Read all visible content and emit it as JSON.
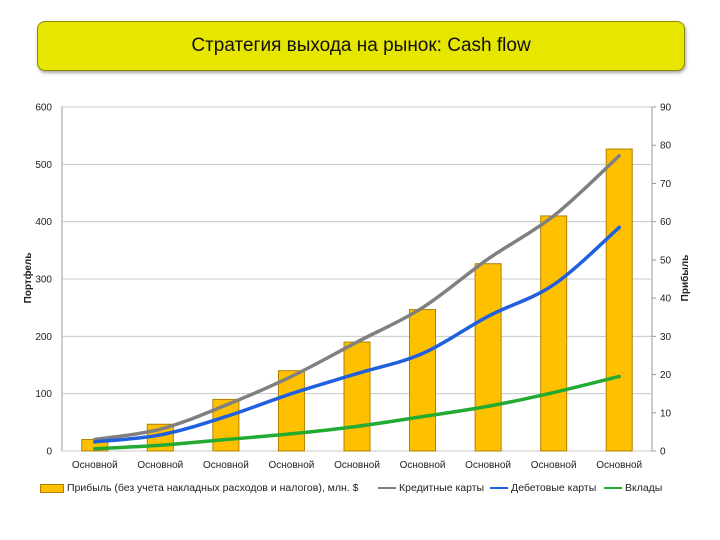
{
  "title": "Стратегия выхода на рынок: Cash flow",
  "colors": {
    "title_bg": "#e6e600",
    "bar": "#ffc000",
    "bar_border": "#b08000",
    "gray_line": "#808080",
    "blue_line": "#1f5fe0",
    "green_line": "#22aa33",
    "grid": "#c8c8c8"
  },
  "chart_data": {
    "type": "bar",
    "categories": [
      "Основной",
      "Основной",
      "Основной",
      "Основной",
      "Основной",
      "Основной",
      "Основной",
      "Основной",
      "Основной"
    ],
    "y_left": {
      "label": "Портфель",
      "ylim": [
        0,
        600
      ],
      "ticks": [
        "0",
        "100",
        "200",
        "300",
        "400",
        "500",
        "600"
      ]
    },
    "y_right": {
      "label": "Прибыль",
      "ylim": [
        0,
        90
      ],
      "ticks": [
        "0",
        "10",
        "20",
        "30",
        "40",
        "50",
        "60",
        "70",
        "80",
        "90"
      ]
    },
    "grid": true,
    "legend_position": "bottom",
    "series": [
      {
        "name": "Прибыль (без учета накладных расходов и налогов), млн. $",
        "kind": "bar",
        "axis": "right",
        "values": [
          3,
          7,
          13.5,
          21,
          28.5,
          37,
          49,
          61.5,
          79
        ]
      },
      {
        "name": "Кредитные карты",
        "kind": "line",
        "axis": "left",
        "color": "#808080",
        "values": [
          20,
          38,
          80,
          130,
          190,
          250,
          335,
          410,
          515
        ]
      },
      {
        "name": "Дебетовые карты",
        "kind": "line",
        "axis": "left",
        "color": "#1f5fe0",
        "values": [
          16,
          28,
          60,
          100,
          135,
          170,
          235,
          290,
          390
        ]
      },
      {
        "name": "Вклады",
        "kind": "line",
        "axis": "left",
        "color": "#22aa33",
        "values": [
          4,
          10,
          20,
          30,
          43,
          60,
          78,
          102,
          130
        ]
      }
    ]
  }
}
